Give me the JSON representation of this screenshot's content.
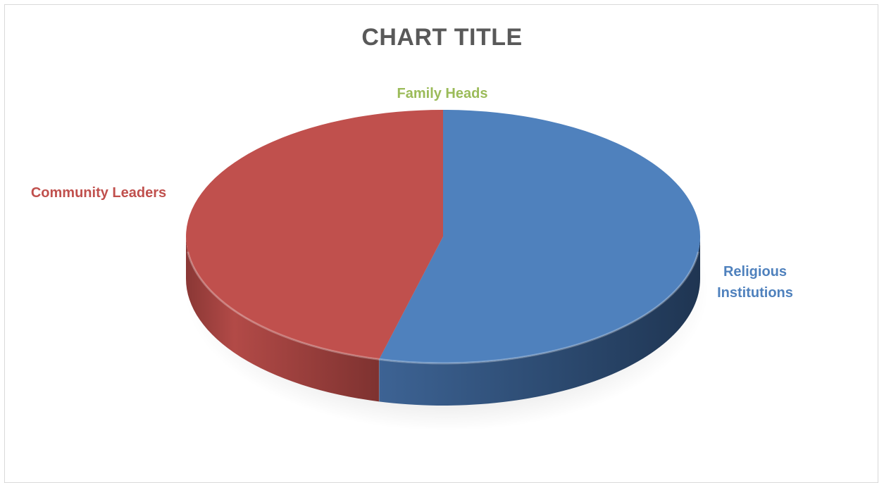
{
  "chart_data": {
    "type": "pie",
    "title": "CHART TITLE",
    "style": "3d",
    "categories": [
      "Religious Institutions",
      "Community Leaders",
      "Family Heads"
    ],
    "label_lines": [
      [
        "Religious",
        "Institutions"
      ],
      [
        "Community Leaders"
      ],
      [
        "Family Heads"
      ]
    ],
    "values": [
      54,
      46,
      0
    ],
    "colors": [
      "#4f81bd",
      "#c0504d",
      "#9bbb59"
    ],
    "legend": false
  }
}
